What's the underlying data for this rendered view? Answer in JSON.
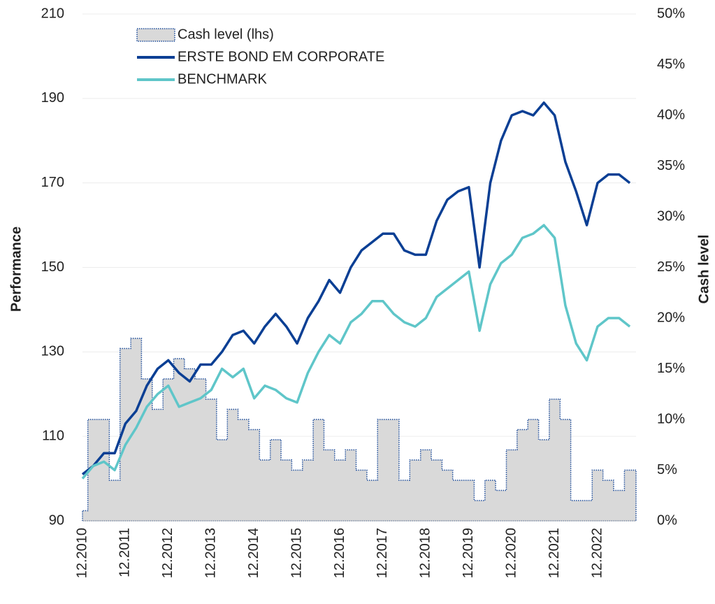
{
  "chart_data": {
    "type": "line",
    "y_label": "Performance",
    "y2_label": "Cash level",
    "categories": [
      "12.2010",
      null,
      null,
      null,
      "12.2011",
      null,
      null,
      null,
      "12.2012",
      null,
      null,
      null,
      "12.2013",
      null,
      null,
      null,
      "12.2014",
      null,
      null,
      null,
      "12.2015",
      null,
      null,
      null,
      "12.2016",
      null,
      null,
      null,
      "12.2017",
      null,
      null,
      null,
      "12.2018",
      null,
      null,
      null,
      "12.2019",
      null,
      null,
      null,
      "12.2020",
      null,
      null,
      null,
      "12.2021",
      null,
      null,
      null,
      "12.2022",
      null,
      null,
      null
    ],
    "series": [
      {
        "name": "Cash level (lhs)",
        "type": "area",
        "axis": "y2",
        "color": "#d9d9d9",
        "border": "#1f4e9c",
        "values": [
          1,
          10,
          10,
          4,
          17,
          18,
          14,
          11,
          14,
          16,
          15,
          14,
          12,
          8,
          11,
          10,
          9,
          6,
          8,
          6,
          5,
          6,
          10,
          7,
          6,
          7,
          5,
          4,
          10,
          10,
          4,
          6,
          7,
          6,
          5,
          4,
          4,
          2,
          4,
          3,
          7,
          9,
          10,
          8,
          12,
          10,
          2,
          2,
          5,
          4,
          3,
          5
        ]
      },
      {
        "name": "ERSTE BOND EM CORPORATE",
        "type": "line",
        "color": "#0b3f94",
        "values": [
          101,
          103,
          106,
          106,
          113,
          116,
          122,
          126,
          128,
          125,
          123,
          127,
          127,
          130,
          134,
          135,
          132,
          136,
          139,
          136,
          132,
          138,
          142,
          147,
          144,
          150,
          154,
          156,
          158,
          158,
          154,
          153,
          153,
          161,
          166,
          168,
          169,
          150,
          170,
          180,
          186,
          187,
          186,
          189,
          186,
          175,
          168,
          160,
          170,
          172,
          172,
          170
        ]
      },
      {
        "name": "BENCHMARK",
        "type": "line",
        "color": "#5fc6c9",
        "values": [
          100,
          103,
          104,
          102,
          108,
          112,
          117,
          120,
          122,
          117,
          118,
          119,
          121,
          126,
          124,
          126,
          119,
          122,
          121,
          119,
          118,
          125,
          130,
          134,
          132,
          137,
          139,
          142,
          142,
          139,
          137,
          136,
          138,
          143,
          145,
          147,
          149,
          135,
          146,
          151,
          153,
          157,
          158,
          160,
          157,
          141,
          132,
          128,
          136,
          138,
          138,
          136
        ]
      }
    ],
    "ylim": [
      90,
      210
    ],
    "yticks": [
      90,
      110,
      130,
      150,
      170,
      190,
      210
    ],
    "y2lim": [
      0,
      50
    ],
    "y2ticks": [
      {
        "value": 0,
        "label": "0%"
      },
      {
        "value": 5,
        "label": "5%"
      },
      {
        "value": 10,
        "label": "10%"
      },
      {
        "value": 15,
        "label": "15%"
      },
      {
        "value": 20,
        "label": "20%"
      },
      {
        "value": 25,
        "label": "25%"
      },
      {
        "value": 30,
        "label": "30%"
      },
      {
        "value": 35,
        "label": "35%"
      },
      {
        "value": 40,
        "label": "40%"
      },
      {
        "value": 45,
        "label": "45%"
      },
      {
        "value": 50,
        "label": "50%"
      }
    ],
    "grid": true,
    "legend": "upper left"
  }
}
